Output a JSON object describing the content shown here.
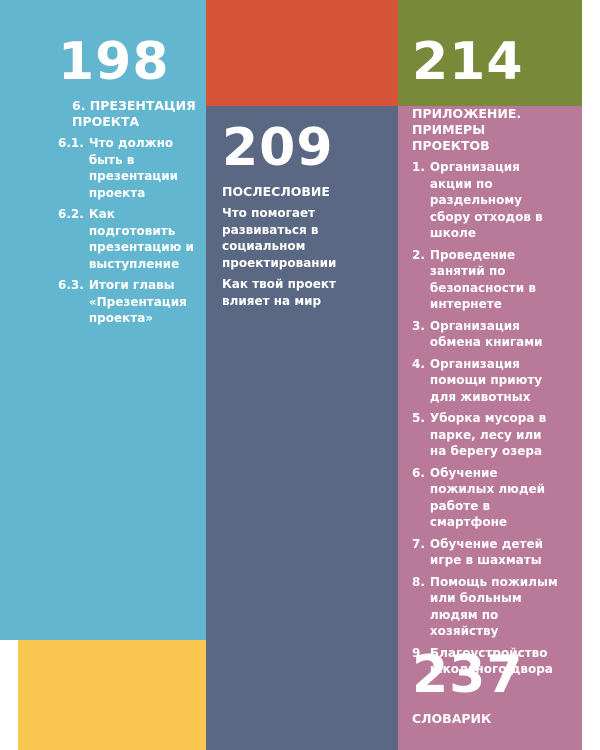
{
  "sections": [
    {
      "page": "198",
      "heading": "6. ПРЕЗЕНТАЦИЯ ПРОЕКТА",
      "items": [
        {
          "num": "6.1.",
          "text": "Что должно быть в презентации проекта"
        },
        {
          "num": "6.2.",
          "text": "Как подготовить презентацию и выступление"
        },
        {
          "num": "6.3.",
          "text": "Итоги главы «Презентация проекта»"
        }
      ]
    },
    {
      "page": "209",
      "heading": "ПОСЛЕСЛОВИЕ",
      "items": [
        {
          "text": "Что помогает развиваться в социальном проектировании"
        },
        {
          "text": "Как твой проект влияет на мир"
        }
      ]
    },
    {
      "page": "214",
      "heading": "ПРИЛОЖЕНИЕ. ПРИМЕРЫ ПРОЕКТОВ",
      "items": [
        {
          "num": "1.",
          "text": "Организация акции по раздельному сбору отходов в школе"
        },
        {
          "num": "2.",
          "text": "Проведение занятий по безопасности в интернете"
        },
        {
          "num": "3.",
          "text": "Организация обмена книгами"
        },
        {
          "num": "4.",
          "text": "Организация помощи приюту для животных"
        },
        {
          "num": "5.",
          "text": "Уборка мусора в парке, лесу или на берегу озера"
        },
        {
          "num": "6.",
          "text": "Обучение пожилых людей работе в смартфоне"
        },
        {
          "num": "7.",
          "text": "Обучение детей игре в шахматы"
        },
        {
          "num": "8.",
          "text": "Помощь пожилым или больным людям по хозяйству"
        },
        {
          "num": "9.",
          "text": "Благоустройство школьного двора"
        }
      ]
    },
    {
      "page": "237",
      "heading": "СЛОВАРИК",
      "items": []
    }
  ]
}
